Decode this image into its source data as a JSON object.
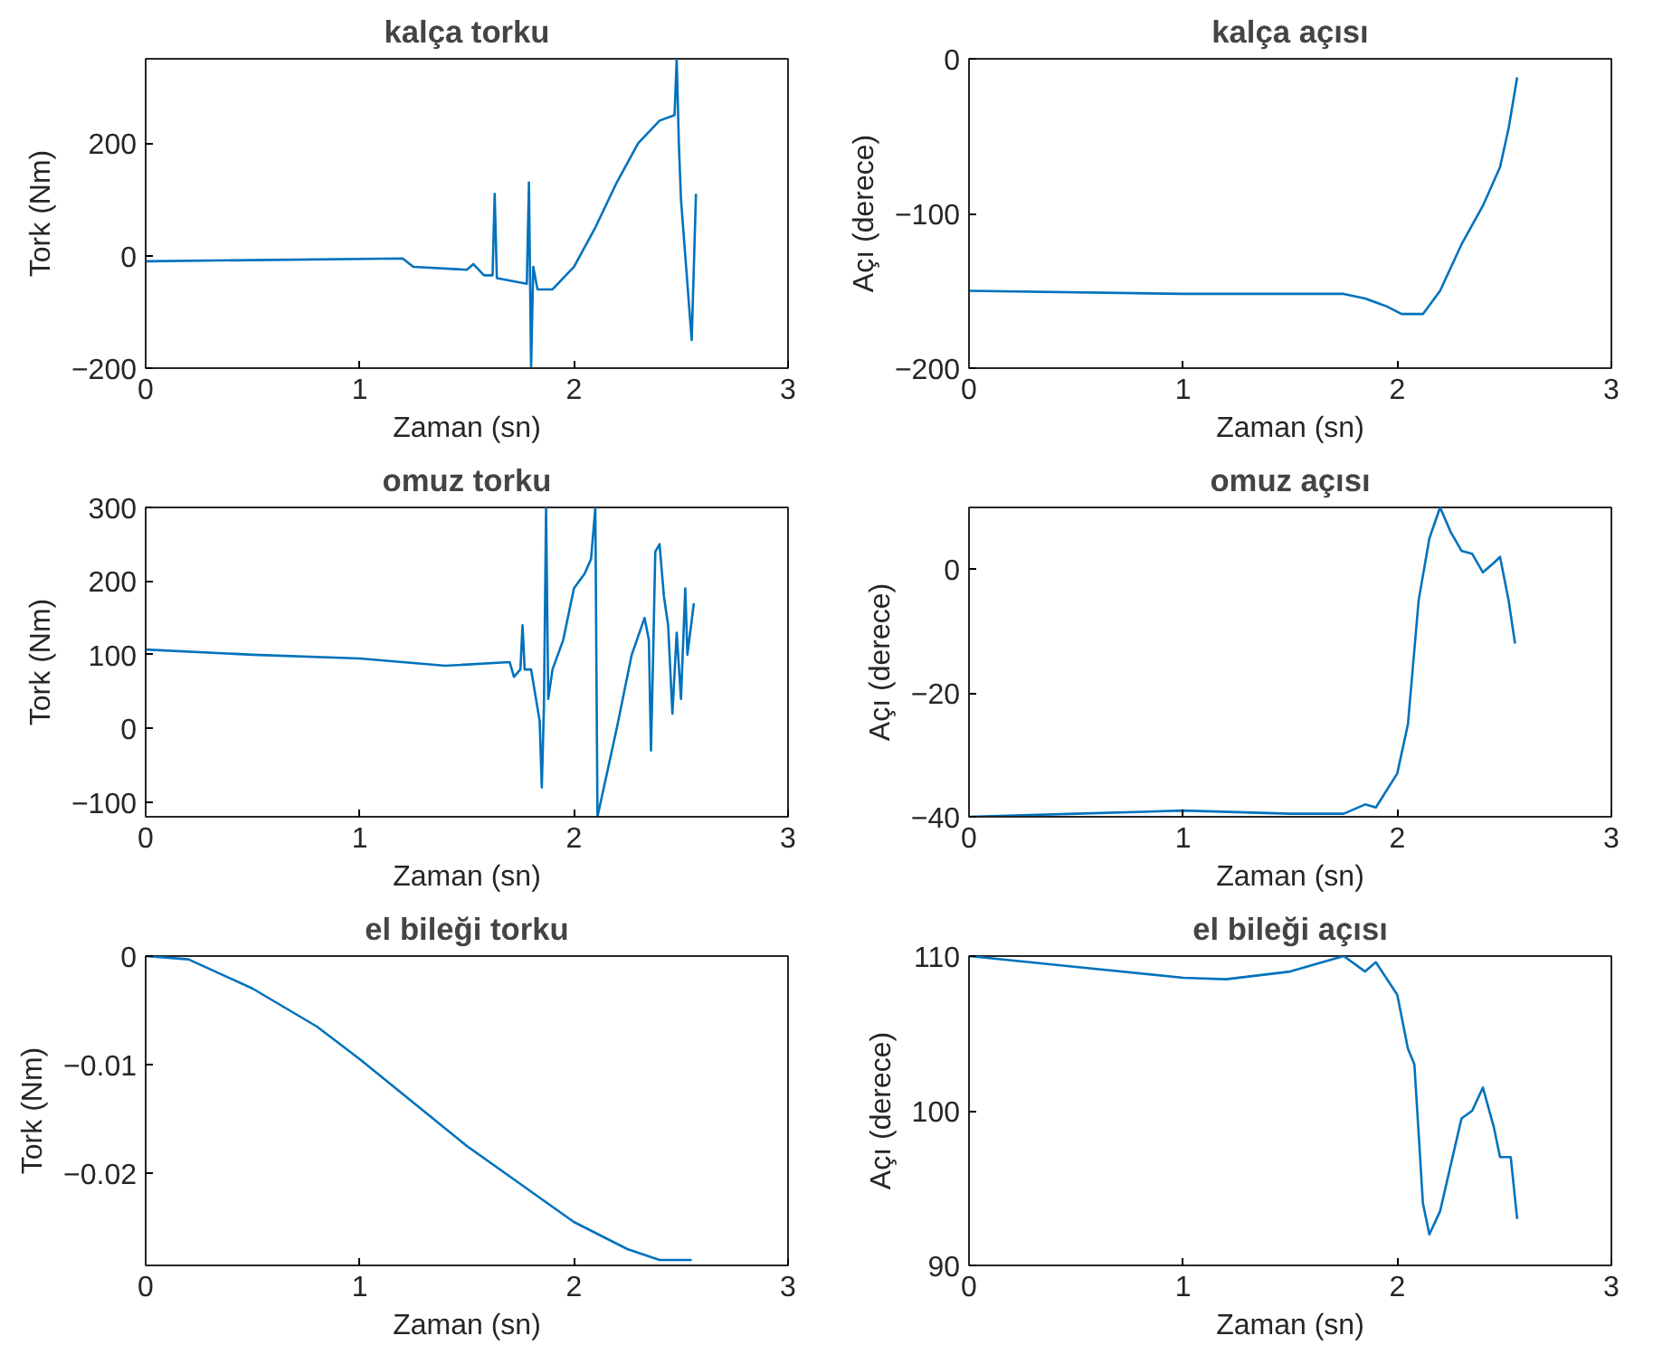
{
  "chart_data": [
    {
      "type": "line",
      "title": "kalça torku",
      "xlabel": "Zaman (sn)",
      "ylabel": "Tork (Nm)",
      "xlim": [
        0,
        3
      ],
      "xticks": [
        0,
        1,
        2,
        3
      ],
      "ylim": [
        -200,
        350
      ],
      "yticks": [
        -200,
        0,
        200
      ],
      "grid": false,
      "x": [
        0,
        1.2,
        1.25,
        1.5,
        1.53,
        1.58,
        1.62,
        1.63,
        1.64,
        1.78,
        1.79,
        1.8,
        1.81,
        1.83,
        1.9,
        2.0,
        2.1,
        2.2,
        2.3,
        2.4,
        2.47,
        2.48,
        2.49,
        2.5,
        2.52,
        2.55,
        2.57
      ],
      "series": [
        {
          "color": "#0072bd",
          "values": [
            -10,
            -5,
            -20,
            -25,
            -15,
            -35,
            -35,
            110,
            -40,
            -50,
            130,
            -200,
            -20,
            -60,
            -60,
            -20,
            50,
            130,
            200,
            240,
            250,
            350,
            200,
            100,
            0,
            -150,
            110
          ]
        }
      ]
    },
    {
      "type": "line",
      "title": "kalça açısı",
      "xlabel": "Zaman (sn)",
      "ylabel": "Açı (derece)",
      "xlim": [
        0,
        3
      ],
      "xticks": [
        0,
        1,
        2,
        3
      ],
      "ylim": [
        -200,
        0
      ],
      "yticks": [
        -200,
        -100,
        0
      ],
      "grid": false,
      "x": [
        0,
        1.0,
        1.75,
        1.85,
        1.95,
        2.02,
        2.12,
        2.2,
        2.3,
        2.4,
        2.48,
        2.52,
        2.56
      ],
      "series": [
        {
          "color": "#0072bd",
          "values": [
            -150,
            -152,
            -152,
            -155,
            -160,
            -165,
            -165,
            -150,
            -120,
            -95,
            -70,
            -45,
            -12
          ]
        }
      ]
    },
    {
      "type": "line",
      "title": "omuz torku",
      "xlabel": "Zaman (sn)",
      "ylabel": "Tork (Nm)",
      "xlim": [
        0,
        3
      ],
      "xticks": [
        0,
        1,
        2,
        3
      ],
      "ylim": [
        -120,
        300
      ],
      "yticks": [
        -100,
        0,
        100,
        200,
        300
      ],
      "grid": false,
      "x": [
        0,
        0.5,
        1.0,
        1.4,
        1.7,
        1.72,
        1.75,
        1.76,
        1.77,
        1.8,
        1.84,
        1.85,
        1.86,
        1.87,
        1.88,
        1.9,
        1.95,
        2.0,
        2.05,
        2.08,
        2.1,
        2.11,
        2.2,
        2.27,
        2.33,
        2.35,
        2.36,
        2.37,
        2.38,
        2.4,
        2.42,
        2.44,
        2.46,
        2.48,
        2.5,
        2.52,
        2.53,
        2.56
      ],
      "series": [
        {
          "color": "#0072bd",
          "values": [
            107,
            100,
            95,
            85,
            90,
            70,
            80,
            140,
            80,
            80,
            10,
            -80,
            30,
            300,
            40,
            80,
            120,
            190,
            210,
            230,
            300,
            -120,
            0,
            100,
            150,
            120,
            -30,
            100,
            240,
            250,
            180,
            140,
            20,
            130,
            40,
            190,
            100,
            170
          ]
        }
      ]
    },
    {
      "type": "line",
      "title": "omuz açısı",
      "xlabel": "Zaman (sn)",
      "ylabel": "Açı (derece)",
      "xlim": [
        0,
        3
      ],
      "xticks": [
        0,
        1,
        2,
        3
      ],
      "ylim": [
        -40,
        10
      ],
      "yticks": [
        -40,
        -20,
        0
      ],
      "grid": false,
      "x": [
        0,
        0.5,
        1,
        1.5,
        1.75,
        1.85,
        1.9,
        2.0,
        2.05,
        2.1,
        2.15,
        2.2,
        2.25,
        2.3,
        2.35,
        2.4,
        2.45,
        2.48,
        2.52,
        2.55
      ],
      "series": [
        {
          "color": "#0072bd",
          "values": [
            -40,
            -39.5,
            -39,
            -39.5,
            -39.5,
            -38,
            -38.5,
            -33,
            -25,
            -5,
            5,
            10,
            6,
            3,
            2.5,
            -0.5,
            1,
            2,
            -5,
            -12
          ]
        }
      ]
    },
    {
      "type": "line",
      "title": "el bileği torku",
      "xlabel": "Zaman (sn)",
      "ylabel": "Tork (Nm)",
      "xlim": [
        0,
        3
      ],
      "xticks": [
        0,
        1,
        2,
        3
      ],
      "ylim": [
        -0.0285,
        0
      ],
      "yticks": [
        -0.02,
        -0.01,
        0
      ],
      "grid": false,
      "x": [
        0,
        0.2,
        0.5,
        0.8,
        1.0,
        1.25,
        1.5,
        1.75,
        2.0,
        2.25,
        2.4,
        2.55
      ],
      "series": [
        {
          "color": "#0072bd",
          "values": [
            0,
            -0.0003,
            -0.003,
            -0.0065,
            -0.0095,
            -0.0135,
            -0.0175,
            -0.021,
            -0.0245,
            -0.027,
            -0.028,
            -0.028
          ]
        }
      ]
    },
    {
      "type": "line",
      "title": "el bileği açısı",
      "xlabel": "Zaman (sn)",
      "ylabel": "Açı (derece)",
      "xlim": [
        0,
        3
      ],
      "xticks": [
        0,
        1,
        2,
        3
      ],
      "ylim": [
        90,
        110
      ],
      "yticks": [
        90,
        100,
        110
      ],
      "grid": false,
      "x": [
        0,
        0.5,
        1.0,
        1.2,
        1.5,
        1.75,
        1.85,
        1.9,
        2.0,
        2.05,
        2.08,
        2.12,
        2.15,
        2.2,
        2.3,
        2.35,
        2.4,
        2.45,
        2.48,
        2.53,
        2.56
      ],
      "series": [
        {
          "color": "#0072bd",
          "values": [
            110,
            109.3,
            108.6,
            108.5,
            109,
            110,
            109,
            109.6,
            107.5,
            104,
            103,
            94,
            92,
            93.5,
            99.5,
            100,
            101.5,
            99,
            97,
            97,
            93
          ]
        }
      ]
    }
  ]
}
